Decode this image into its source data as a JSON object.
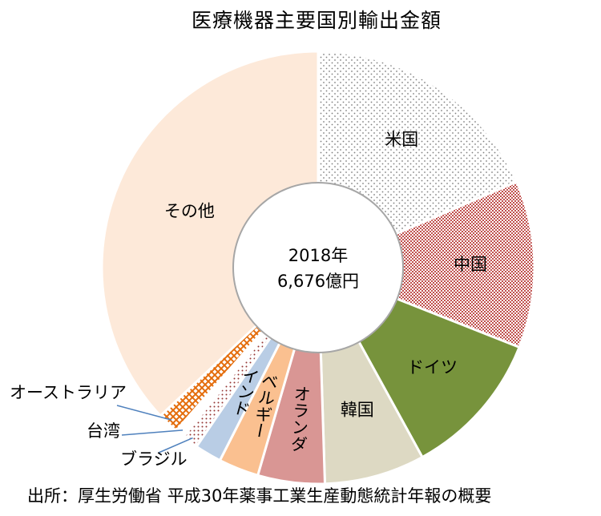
{
  "chart_data": {
    "type": "pie",
    "title": "医療機器主要国別輸出金額",
    "center_text": [
      "2018年",
      "6,676億円"
    ],
    "slices": [
      {
        "label": "米国",
        "share": 0.185,
        "color": "#ffffff",
        "pattern": "dots"
      },
      {
        "label": "中国",
        "share": 0.125,
        "color": "#c0504d",
        "pattern": "check"
      },
      {
        "label": "ドイツ",
        "share": 0.11,
        "color": "#77933c",
        "pattern": "solid"
      },
      {
        "label": "韓国",
        "share": 0.075,
        "color": "#ddd9c3",
        "pattern": "solid"
      },
      {
        "label": "オランダ",
        "share": 0.05,
        "color": "#d99694",
        "pattern": "solid"
      },
      {
        "label": "ベルギー",
        "share": 0.03,
        "color": "#fac090",
        "pattern": "solid"
      },
      {
        "label": "インド",
        "share": 0.02,
        "color": "#b9cde5",
        "pattern": "solid"
      },
      {
        "label": "ブラジル",
        "share": 0.012,
        "color": "#ffffff",
        "pattern": "dots-red"
      },
      {
        "label": "台湾",
        "share": 0.007,
        "color": "#ffffff",
        "pattern": "solid"
      },
      {
        "label": "オーストラリア",
        "share": 0.016,
        "color": "#e46c0a",
        "pattern": "cross"
      },
      {
        "label": "その他",
        "share": 0.37,
        "color": "#fde9d9",
        "pattern": "solid"
      }
    ]
  },
  "source": "出所：厚生労働省 平成30年薬事工業生産動態統計年報の概要"
}
